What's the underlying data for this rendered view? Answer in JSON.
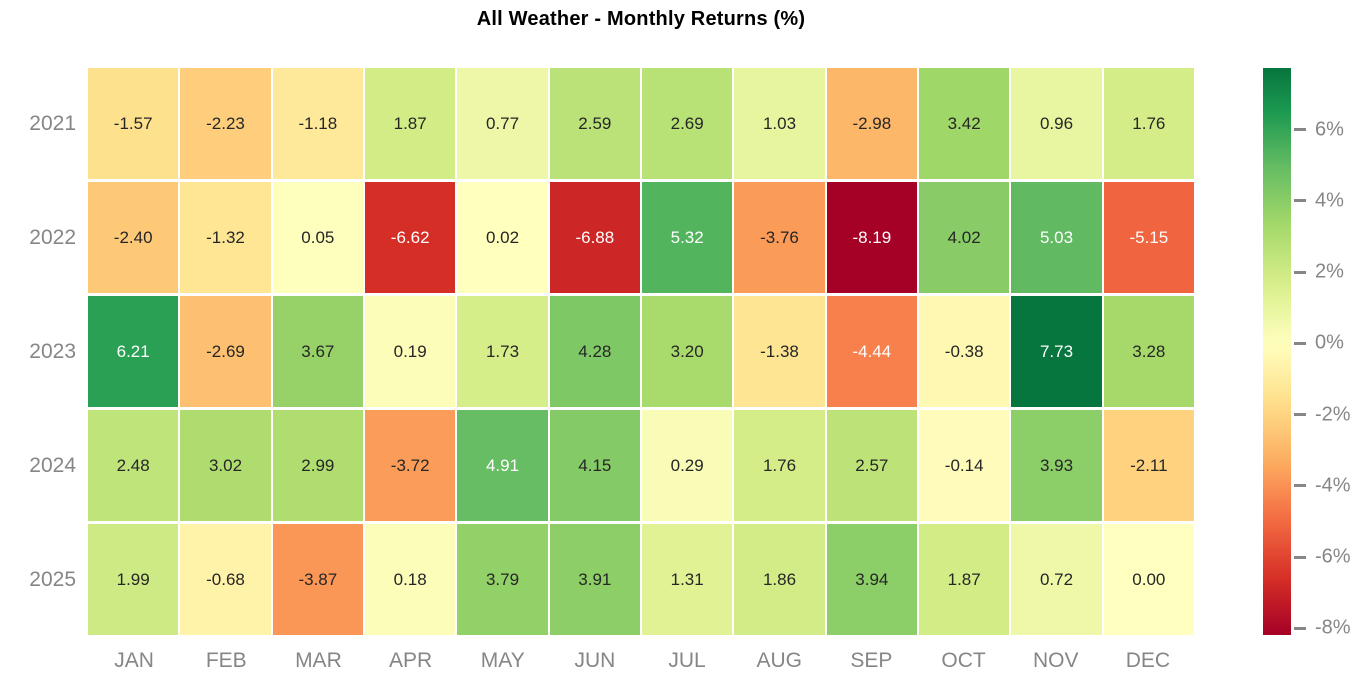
{
  "chart_data": {
    "type": "heatmap",
    "title": "All Weather - Monthly Returns (%)",
    "x_labels": [
      "JAN",
      "FEB",
      "MAR",
      "APR",
      "MAY",
      "JUN",
      "JUL",
      "AUG",
      "SEP",
      "OCT",
      "NOV",
      "DEC"
    ],
    "y_labels": [
      "2021",
      "2022",
      "2023",
      "2024",
      "2025"
    ],
    "rows": [
      [
        -1.57,
        -2.23,
        -1.18,
        1.87,
        0.77,
        2.59,
        2.69,
        1.03,
        -2.98,
        3.42,
        0.96,
        1.76
      ],
      [
        -2.4,
        -1.32,
        0.05,
        -6.62,
        0.02,
        -6.88,
        5.32,
        -3.76,
        -8.19,
        4.02,
        5.03,
        -5.15
      ],
      [
        6.21,
        -2.69,
        3.67,
        0.19,
        1.73,
        4.28,
        3.2,
        -1.38,
        -4.44,
        -0.38,
        7.73,
        3.28
      ],
      [
        2.48,
        3.02,
        2.99,
        -3.72,
        4.91,
        4.15,
        0.29,
        1.76,
        2.57,
        -0.14,
        3.93,
        -2.11
      ],
      [
        1.99,
        -0.68,
        -3.87,
        0.18,
        3.79,
        3.91,
        1.31,
        1.86,
        3.94,
        1.87,
        0.72,
        0.0
      ]
    ],
    "value_decimals": 2,
    "colormap": {
      "name": "RdYlGn",
      "stops": [
        "#a50026",
        "#d73027",
        "#f46d43",
        "#fdae61",
        "#fee08b",
        "#ffffbf",
        "#d9ef8b",
        "#a6d96a",
        "#66bd63",
        "#1a9850",
        "#006837"
      ]
    },
    "colorbar": {
      "tick_values": [
        6,
        4,
        2,
        0,
        -2,
        -4,
        -6,
        -8
      ],
      "tick_labels": [
        "6%",
        "4%",
        "2%",
        "0%",
        "-2%",
        "-4%",
        "-6%",
        "-8%"
      ],
      "legend_position": "right"
    },
    "colors": {
      "background": "#ffffff",
      "axis_label_gray": "#868686",
      "annotation_dark": "#262626",
      "annotation_light": "#ffffff",
      "title_color": "#000000"
    },
    "grid": "white gaps between cells"
  }
}
